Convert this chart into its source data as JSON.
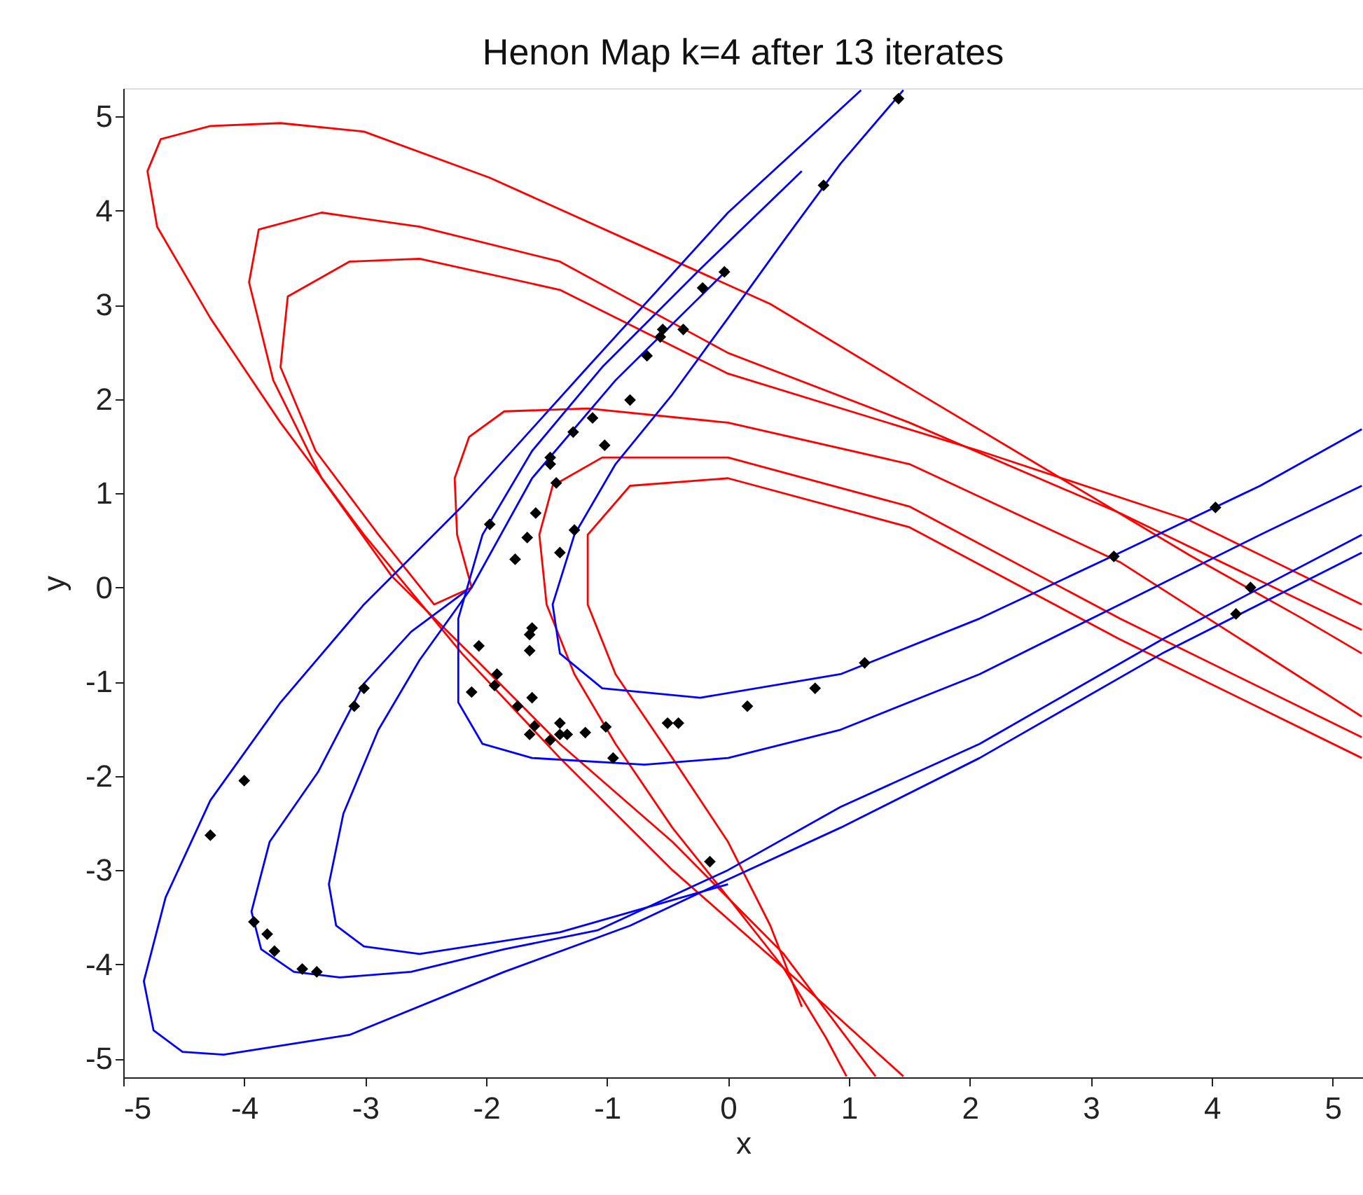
{
  "chart_data": {
    "type": "line",
    "title": "Henon Map k=4 after 13 iterates",
    "xlabel": "x",
    "ylabel": "y",
    "xlim": [
      -5,
      5.25
    ],
    "ylim": [
      -5.2,
      5.3
    ],
    "xticks": [
      -5,
      -4,
      -3,
      -2,
      -1,
      0,
      1,
      2,
      3,
      4,
      5
    ],
    "yticks": [
      -5,
      -4,
      -3,
      -2,
      -1,
      0,
      1,
      2,
      3,
      4,
      5
    ],
    "grid": false,
    "series": [
      {
        "color": "#ff0000",
        "x": [
          1.45,
          0.46,
          -0.46,
          -1.39,
          -2.2,
          -3.01,
          -3.7,
          -4.28,
          -4.72,
          -4.8,
          -4.69,
          -4.28,
          -3.7,
          -3.01,
          -1.97,
          -0.81,
          0.35,
          1.5,
          2.66,
          3.82,
          4.75,
          5.24
        ],
        "values": [
          -5.19,
          -4.04,
          -3.0,
          -1.81,
          -0.7,
          0.56,
          1.75,
          2.86,
          3.83,
          4.42,
          4.76,
          4.9,
          4.93,
          4.84,
          4.35,
          3.68,
          3.01,
          2.12,
          1.23,
          0.34,
          -0.33,
          -0.7
        ]
      },
      {
        "color": "#ff0000",
        "x": [
          1.22,
          0.46,
          -0.46,
          -1.39,
          -2.08,
          -2.78,
          -3.36,
          -3.76,
          -3.96,
          -3.88,
          -3.36,
          -2.55,
          -1.39,
          0.0,
          1.5,
          3.24,
          5.24
        ],
        "values": [
          -5.19,
          -3.89,
          -2.7,
          -1.66,
          -0.77,
          0.12,
          1.16,
          2.2,
          3.24,
          3.8,
          3.98,
          3.83,
          3.46,
          2.49,
          1.75,
          0.79,
          -0.45
        ]
      },
      {
        "color": "#ff0000",
        "x": [
          5.24,
          3.24,
          1.5,
          0.0,
          -1.16,
          -1.85,
          -2.14,
          -2.26,
          -2.24,
          -2.12,
          -2.43,
          -2.89,
          -3.41,
          -3.7,
          -3.64,
          -3.13,
          -2.55,
          -1.39,
          0.0,
          2.08,
          3.82,
          5.24
        ],
        "values": [
          -1.37,
          0.27,
          1.31,
          1.75,
          1.9,
          1.87,
          1.6,
          1.16,
          0.56,
          0.0,
          -0.18,
          0.56,
          1.45,
          2.34,
          3.09,
          3.46,
          3.49,
          3.16,
          2.27,
          1.45,
          0.71,
          -0.18
        ]
      },
      {
        "color": "#ff0000",
        "x": [
          5.24,
          3.24,
          1.5,
          0.0,
          -1.04,
          -1.45,
          -1.56,
          -1.5,
          -1.27,
          -0.93,
          -0.46,
          0.0,
          0.46,
          0.81,
          0.98
        ],
        "values": [
          -1.59,
          -0.33,
          0.86,
          1.38,
          1.38,
          1.08,
          0.56,
          -0.18,
          -0.92,
          -1.66,
          -2.55,
          -3.29,
          -4.04,
          -4.78,
          -5.19
        ]
      },
      {
        "color": "#ff0000",
        "x": [
          5.24,
          3.24,
          1.5,
          0.0,
          -0.81,
          -1.16,
          -1.16,
          -0.93,
          -0.46,
          0.0,
          0.35,
          0.61
        ],
        "values": [
          -1.81,
          -0.55,
          0.64,
          1.16,
          1.08,
          0.56,
          -0.18,
          -0.92,
          -1.81,
          -2.7,
          -3.59,
          -4.45
        ]
      },
      {
        "color": "#0000ff",
        "x": [
          1.1,
          0.0,
          -1.16,
          -2.2,
          -3.01,
          -3.7,
          -4.28,
          -4.65,
          -4.83,
          -4.75,
          -4.51,
          -4.17,
          -3.13,
          -1.85,
          -0.81,
          0.0,
          0.93,
          2.08,
          3.59,
          5.24
        ],
        "values": [
          5.28,
          3.98,
          2.34,
          0.86,
          -0.18,
          -1.22,
          -2.26,
          -3.29,
          -4.18,
          -4.7,
          -4.93,
          -4.96,
          -4.75,
          -4.08,
          -3.59,
          -3.1,
          -2.55,
          -1.81,
          -0.7,
          0.37
        ]
      },
      {
        "color": "#0000ff",
        "x": [
          1.45,
          0.93,
          0.46,
          0.0,
          -0.46,
          -0.93,
          -1.27,
          -1.45,
          -1.39,
          -1.04,
          -0.23,
          0.93,
          2.08,
          3.24,
          4.4,
          5.24
        ],
        "values": [
          5.28,
          4.5,
          3.68,
          2.86,
          2.05,
          1.31,
          0.56,
          -0.18,
          -0.7,
          -1.07,
          -1.17,
          -0.92,
          -0.33,
          0.37,
          1.08,
          1.68
        ]
      },
      {
        "color": "#0000ff",
        "x": [
          -2.16,
          -2.62,
          -3.01,
          -3.39,
          -3.79,
          -3.94,
          -3.86,
          -3.59,
          -3.21,
          -2.62,
          -1.85,
          -1.08,
          0.0,
          0.93,
          2.08,
          3.59,
          5.24
        ],
        "values": [
          -0.03,
          -0.47,
          -1.02,
          -1.96,
          -2.7,
          -3.44,
          -3.84,
          -4.08,
          -4.14,
          -4.08,
          -3.84,
          -3.64,
          -3.0,
          -2.33,
          -1.66,
          -0.55,
          0.56
        ]
      },
      {
        "color": "#0000ff",
        "x": [
          0.0,
          -0.93,
          -1.62,
          -2.12,
          -2.55,
          -2.89,
          -3.18,
          -3.3,
          -3.24,
          -3.01,
          -2.55,
          -1.39,
          0.0
        ],
        "values": [
          3.38,
          2.2,
          1.16,
          0.0,
          -0.77,
          -1.51,
          -2.4,
          -3.15,
          -3.59,
          -3.81,
          -3.89,
          -3.66,
          -3.15
        ]
      },
      {
        "color": "#0000ff",
        "x": [
          0.61,
          -0.23,
          -1.04,
          -1.62,
          -2.03,
          -2.23,
          -2.23,
          -2.03,
          -1.62,
          -0.69,
          0.0,
          0.93,
          2.08,
          3.24,
          4.4,
          5.24
        ],
        "values": [
          4.42,
          3.38,
          2.34,
          1.45,
          0.56,
          -0.33,
          -1.22,
          -1.66,
          -1.81,
          -1.88,
          -1.81,
          -1.51,
          -0.92,
          -0.18,
          0.56,
          1.08
        ]
      },
      {
        "type": "scatter",
        "color": "#000000",
        "marker": "diamond",
        "x": [
          -0.03,
          -0.21,
          -0.54,
          -0.56,
          -0.37,
          -0.67,
          -0.81,
          -1.12,
          -1.28,
          -1.02,
          -1.47,
          -1.47,
          -1.42,
          -1.59,
          -1.97,
          -1.66,
          -1.76,
          -1.27,
          -1.39,
          1.41,
          0.79,
          4.03,
          3.19,
          4.32,
          4.2,
          1.13,
          0.72,
          0.16,
          -0.15,
          -2.06,
          -1.62,
          -1.64,
          -1.64,
          -1.91,
          -1.93,
          -2.12,
          -1.62,
          -1.74,
          -1.6,
          -1.64,
          -1.47,
          -1.39,
          -1.39,
          -1.33,
          -1.18,
          -1.01,
          -0.95,
          -0.5,
          -0.41,
          -3.01,
          -3.09,
          -4.0,
          -4.28,
          -3.92,
          -3.81,
          -3.75,
          -3.52,
          -3.4
        ],
        "values": [
          3.35,
          3.18,
          2.74,
          2.66,
          2.74,
          2.46,
          1.99,
          1.8,
          1.65,
          1.51,
          1.38,
          1.31,
          1.11,
          0.79,
          0.67,
          0.53,
          0.3,
          0.61,
          0.37,
          5.19,
          4.27,
          0.85,
          0.33,
          0.0,
          -0.28,
          -0.8,
          -1.07,
          -1.26,
          -2.91,
          -0.62,
          -0.43,
          -0.5,
          -0.67,
          -0.92,
          -1.04,
          -1.11,
          -1.17,
          -1.26,
          -1.47,
          -1.56,
          -1.62,
          -1.44,
          -1.56,
          -1.56,
          -1.54,
          -1.48,
          -1.81,
          -1.44,
          -1.44,
          -1.07,
          -1.26,
          -2.05,
          -2.63,
          -3.55,
          -3.68,
          -3.86,
          -4.05,
          -4.08
        ]
      }
    ]
  }
}
